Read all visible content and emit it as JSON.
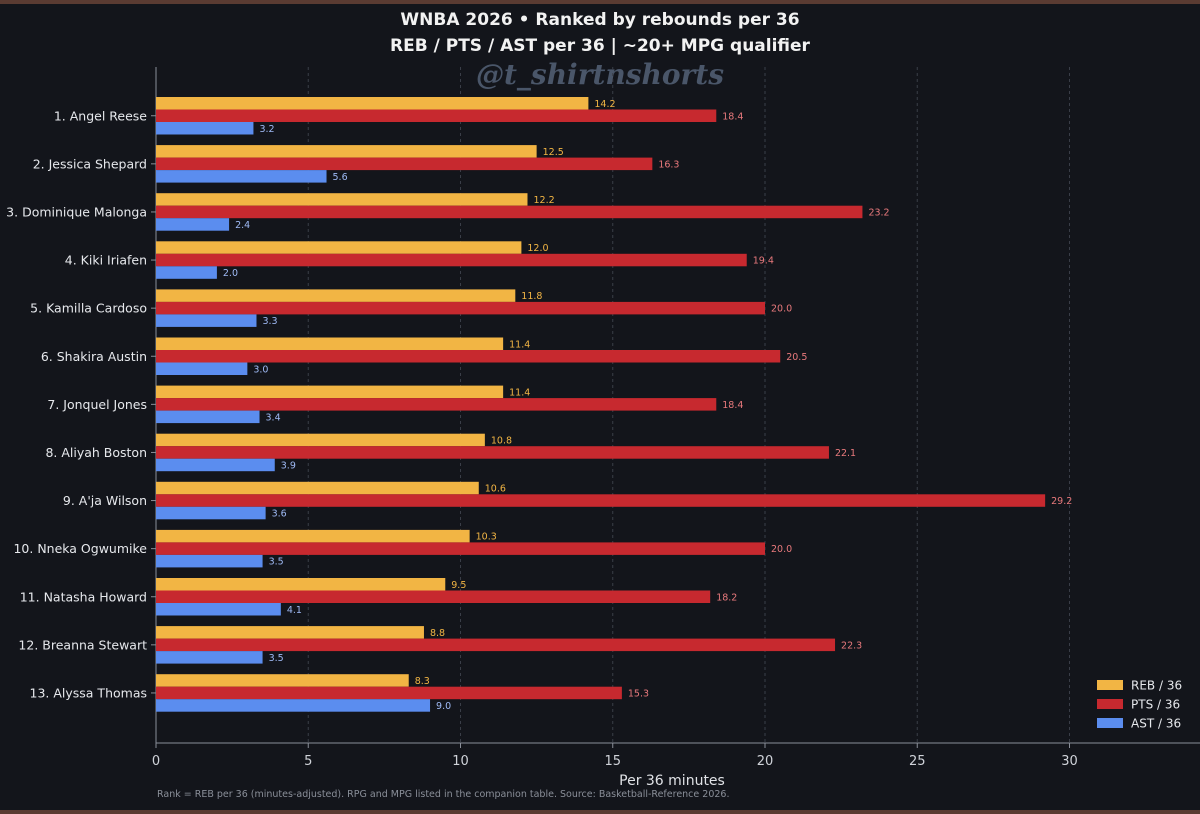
{
  "chart_data": {
    "type": "bar",
    "orientation": "horizontal",
    "title": "WNBA 2026  •  Ranked by rebounds per 36",
    "subtitle": "REB / PTS / AST per 36  |  ~20+ MPG qualifier",
    "xlabel": "Per 36 minutes",
    "ylabel": "",
    "xlim": [
      0,
      34.5
    ],
    "x_ticks": [
      0,
      5,
      10,
      15,
      20,
      25,
      30
    ],
    "grid": "vertical dashed",
    "legend_position": "bottom-right",
    "categories": [
      "1. Angel Reese",
      "2. Jessica Shepard",
      "3. Dominique Malonga",
      "4. Kiki Iriafen",
      "5. Kamilla Cardoso",
      "6. Shakira Austin",
      "7. Jonquel Jones",
      "8. Aliyah Boston",
      "9. A'ja Wilson",
      "10. Nneka Ogwumike",
      "11. Natasha Howard",
      "12. Breanna Stewart",
      "13. Alyssa Thomas"
    ],
    "series": [
      {
        "name": "REB / 36",
        "color": "#f2b544",
        "label_color": "#f2b544",
        "values": [
          14.2,
          12.5,
          12.2,
          12.0,
          11.8,
          11.4,
          11.4,
          10.8,
          10.6,
          10.3,
          9.5,
          8.8,
          8.3
        ]
      },
      {
        "name": "PTS / 36",
        "color": "#c7292f",
        "label_color": "#e8797c",
        "values": [
          18.4,
          16.3,
          23.2,
          19.4,
          20.0,
          20.5,
          18.4,
          22.1,
          29.2,
          20.0,
          18.2,
          22.3,
          15.3
        ]
      },
      {
        "name": "AST / 36",
        "color": "#5b8def",
        "label_color": "#9fbaf5",
        "values": [
          3.2,
          5.6,
          2.4,
          2.0,
          3.3,
          3.0,
          3.4,
          3.9,
          3.6,
          3.5,
          4.1,
          3.5,
          9.0
        ]
      }
    ]
  },
  "watermark": "@t_shirtnshorts",
  "footnote": "Rank = REB per 36 (minutes-adjusted). RPG and MPG listed in the companion table. Source: Basketball-Reference 2026."
}
